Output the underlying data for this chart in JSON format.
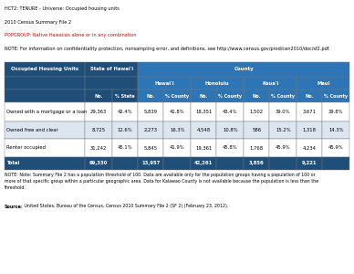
{
  "title_lines": [
    "HCT2: TENURE - Universe: Occupied housing units",
    "2010 Census Summary File 2",
    "POPGROUP: Native Hawaiian alone or in any combination",
    "NOTE: For information on confidentiality protection, nonsampling error, and definitions, see http://www.census.gov/prod/cen2010/doc/sf2.pdf."
  ],
  "title_colors": [
    "#000000",
    "#000000",
    "#cc0000",
    "#000000"
  ],
  "header_bg": "#1f4e79",
  "header_fg": "#ffffff",
  "subheader_bg": "#2e75b6",
  "total_bg": "#1f4e79",
  "total_fg": "#ffffff",
  "row_colors": [
    "#ffffff",
    "#dce6f1"
  ],
  "rows": [
    {
      "label": "Owned with a mortgage or a loan",
      "values": [
        "29,363",
        "42.4%",
        "5,839",
        "41.8%",
        "18,351",
        "43.4%",
        "1,502",
        "39.0%",
        "3,671",
        "39.8%"
      ],
      "is_total": false
    },
    {
      "label": "Owned free and clear",
      "values": [
        "8,725",
        "12.6%",
        "2,273",
        "16.3%",
        "4,548",
        "10.8%",
        "586",
        "15.2%",
        "1,318",
        "14.3%"
      ],
      "is_total": false
    },
    {
      "label": "Renter occupied",
      "values": [
        "31,242",
        "45.1%",
        "5,845",
        "41.9%",
        "19,361",
        "45.8%",
        "1,768",
        "45.9%",
        "4,234",
        "45.9%"
      ],
      "is_total": false
    },
    {
      "label": "Total",
      "values": [
        "69,330",
        "",
        "13,957",
        "",
        "42,261",
        "",
        "3,856",
        "",
        "9,221",
        ""
      ],
      "is_total": true
    }
  ],
  "note_text": "NOTE: Note: Summary File 2 has a population threshold of 100. Data are available only for the population groups having a population of 100 or\nmore of that specific group within a particular geographic area. Data for Kalawao County is not available because the population is less than the\nthreshold.",
  "source_label": "Source:",
  "source_rest": " United States, Bureau of the Census, Census 2010 Summary File 2 (SF 2) (February 23, 2012)."
}
